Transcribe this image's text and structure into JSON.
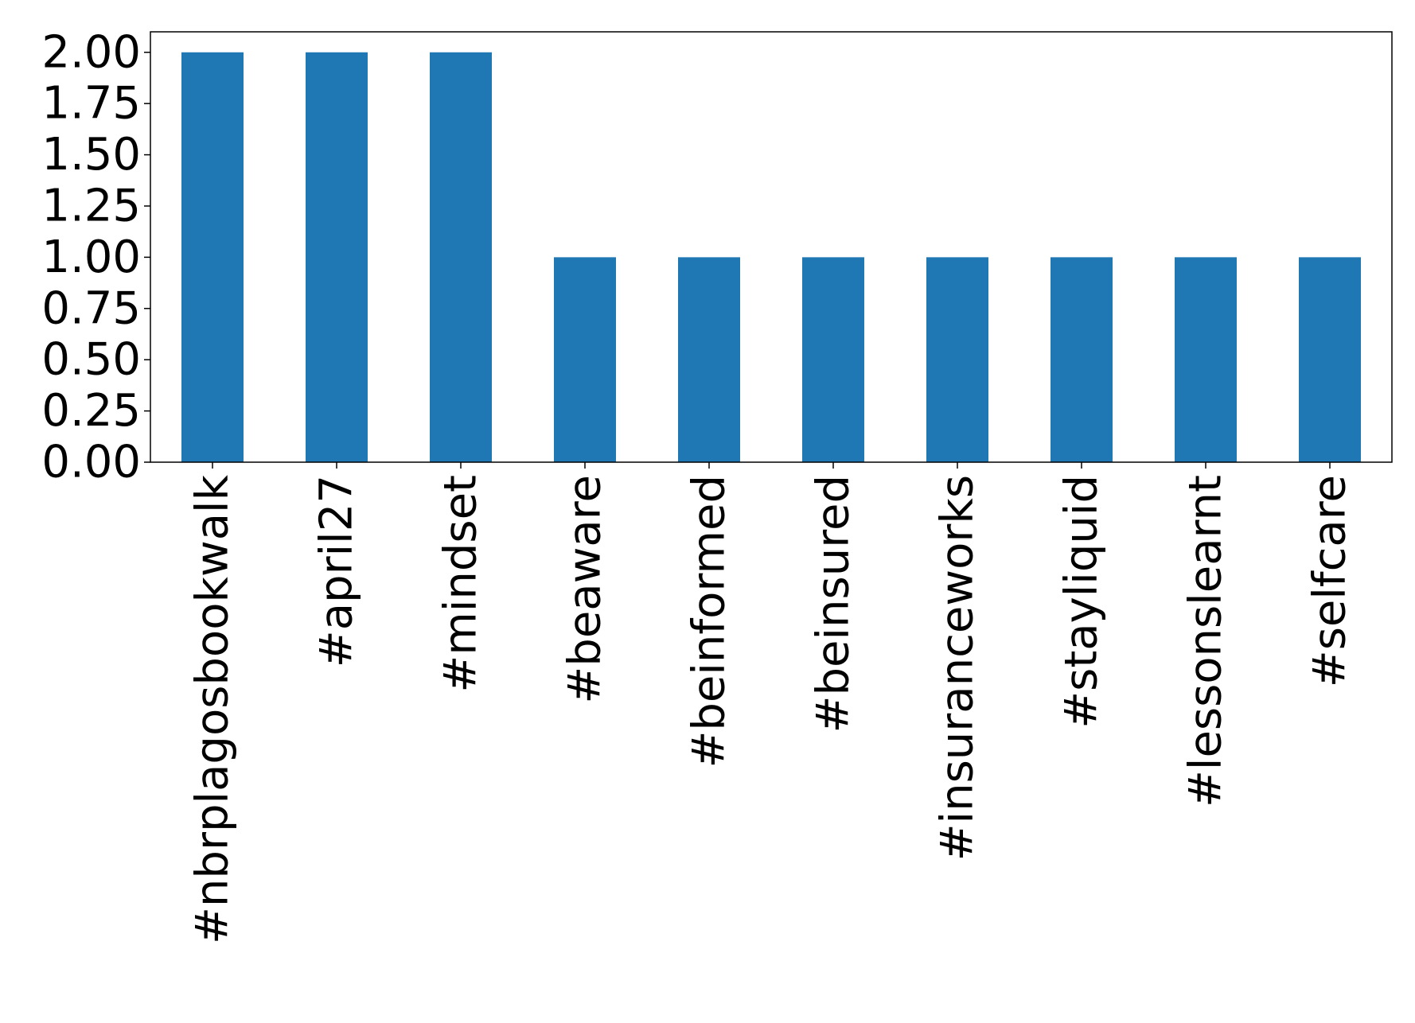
{
  "chart_data": {
    "type": "bar",
    "title": "",
    "xlabel": "",
    "ylabel": "",
    "categories": [
      "#nbrplagosbookwalk",
      "#april27",
      "#mindset",
      "#beaware",
      "#beinformed",
      "#beinsured",
      "#insuranceworks",
      "#stayliquid",
      "#lessonslearnt",
      "#selfcare"
    ],
    "values": [
      2,
      2,
      2,
      1,
      1,
      1,
      1,
      1,
      1,
      1
    ],
    "ylim": [
      0,
      2.1
    ],
    "yticks": [
      "0.00",
      "0.25",
      "0.50",
      "0.75",
      "1.00",
      "1.25",
      "1.50",
      "1.75",
      "2.00"
    ],
    "ytick_values": [
      0,
      0.25,
      0.5,
      0.75,
      1.0,
      1.25,
      1.5,
      1.75,
      2.0
    ],
    "grid": false,
    "legend": "none",
    "bar_color": "#1f77b4"
  }
}
